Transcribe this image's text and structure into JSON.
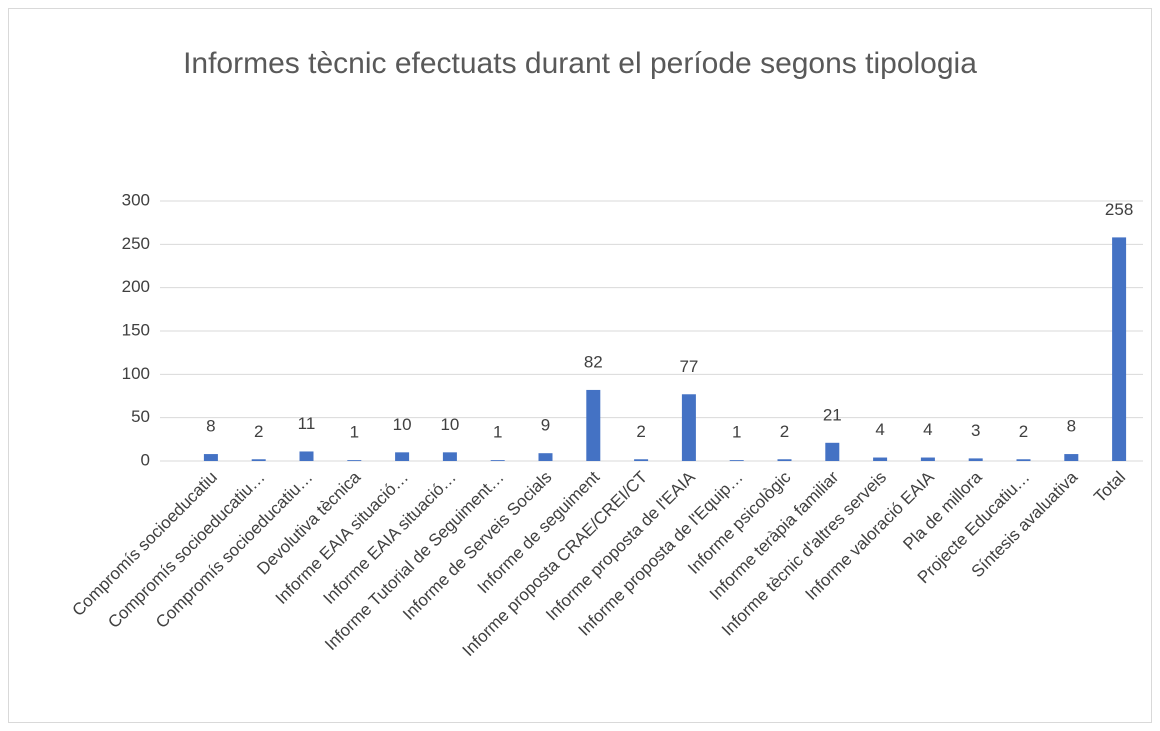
{
  "chart_data": {
    "type": "bar",
    "title": "Informes tècnic efectuats durant el període  segons tipologia",
    "categories": [
      "Compromís socioeducatiu",
      "Compromís socioeducatiu…",
      "Compromís socioeducatiu…",
      "Devolutiva tècnica",
      "Informe EAIA situació…",
      "Informe EAIA situació…",
      "Informe Tutorial de Seguiment…",
      "Informe de Serveis Socials",
      "Informe de seguiment",
      "Informe proposta CRAE/CREI/CT",
      "Informe proposta de l'EAIA",
      "Informe proposta de l'Equip…",
      "Informe psicològic",
      "Informe teràpia familiar",
      "Informe tècnic d'altres serveis",
      "Informe valoració EAIA",
      "Pla de millora",
      "Projecte Educatiu…",
      "Síntesis avaluativa",
      "Total"
    ],
    "values": [
      8,
      2,
      11,
      1,
      10,
      10,
      1,
      9,
      82,
      2,
      77,
      1,
      2,
      21,
      4,
      4,
      3,
      2,
      8,
      258
    ],
    "color": "#4472c4",
    "ylim": [
      0,
      300
    ],
    "yticks": [
      0,
      50,
      100,
      150,
      200,
      250,
      300
    ],
    "grid": true
  }
}
